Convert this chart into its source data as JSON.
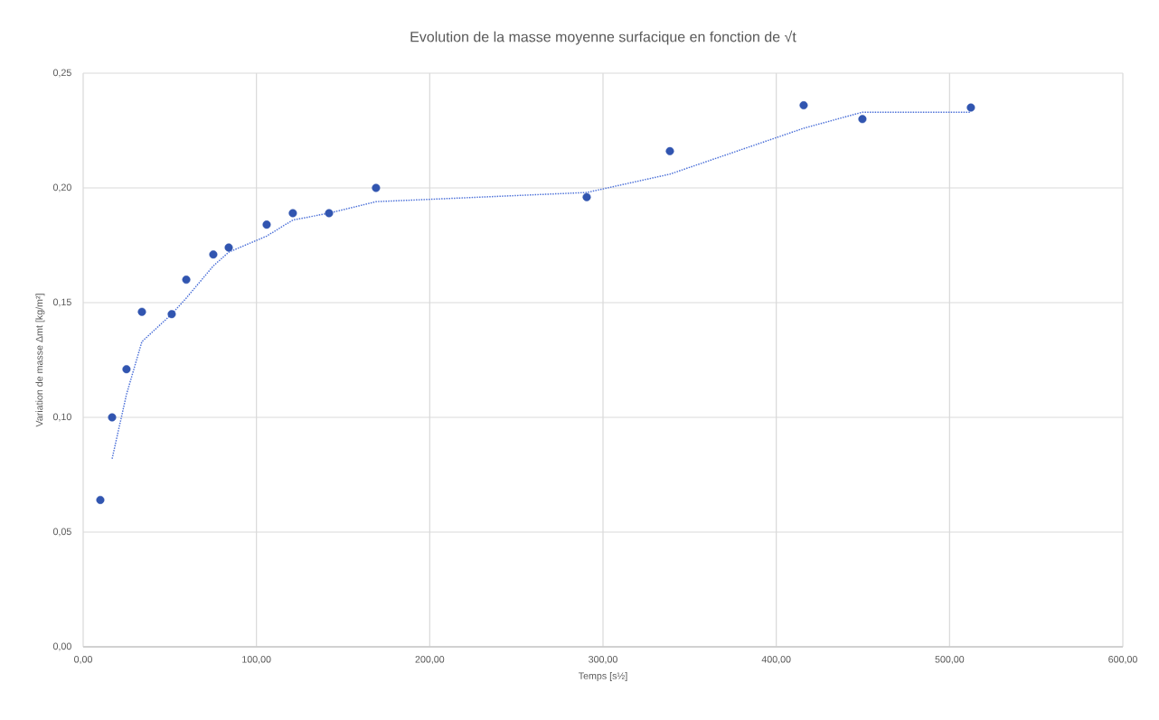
{
  "chart_data": {
    "type": "scatter",
    "title": "Evolution de la masse moyenne surfacique en fonction de √t",
    "xlabel": "Temps [s½]",
    "ylabel": "Variation de masse Δmt [kg/m²]",
    "xlim": [
      0,
      600
    ],
    "ylim": [
      0,
      0.25
    ],
    "grid": true,
    "xticks": [
      {
        "value": 0,
        "label": "0,00"
      },
      {
        "value": 100,
        "label": "100,00"
      },
      {
        "value": 200,
        "label": "200,00"
      },
      {
        "value": 300,
        "label": "300,00"
      },
      {
        "value": 400,
        "label": "400,00"
      },
      {
        "value": 500,
        "label": "500,00"
      },
      {
        "value": 600,
        "label": "600,00"
      }
    ],
    "yticks": [
      {
        "value": 0,
        "label": "0,00"
      },
      {
        "value": 0.05,
        "label": "0,05"
      },
      {
        "value": 0.1,
        "label": "0,10"
      },
      {
        "value": 0.15,
        "label": "0,15"
      },
      {
        "value": 0.2,
        "label": "0,20"
      },
      {
        "value": 0.25,
        "label": "0,25"
      }
    ],
    "series": [
      {
        "color": "#3155b0",
        "marker": "circle",
        "x": [
          9.9,
          16.7,
          25.0,
          33.9,
          51.1,
          59.5,
          75.1,
          84.0,
          105.9,
          121.0,
          141.9,
          169.0,
          290.6,
          338.6,
          415.8,
          449.7,
          512.3
        ],
        "values": [
          0.064,
          0.1,
          0.121,
          0.146,
          0.145,
          0.16,
          0.171,
          0.174,
          0.184,
          0.189,
          0.189,
          0.2,
          0.196,
          0.216,
          0.236,
          0.23,
          0.235
        ]
      },
      {
        "type": "line",
        "color": "#4a6fd8",
        "marker": "none",
        "line_style": "dotted",
        "x": [
          16.7,
          25.0,
          33.9,
          51.1,
          59.5,
          75.1,
          84.0,
          105.9,
          121.0,
          141.9,
          169.0,
          290.6,
          338.6,
          415.8,
          449.7,
          512.3
        ],
        "values": [
          0.082,
          0.11,
          0.133,
          0.145,
          0.152,
          0.166,
          0.172,
          0.179,
          0.186,
          0.189,
          0.194,
          0.198,
          0.206,
          0.226,
          0.233,
          0.233
        ]
      }
    ]
  }
}
